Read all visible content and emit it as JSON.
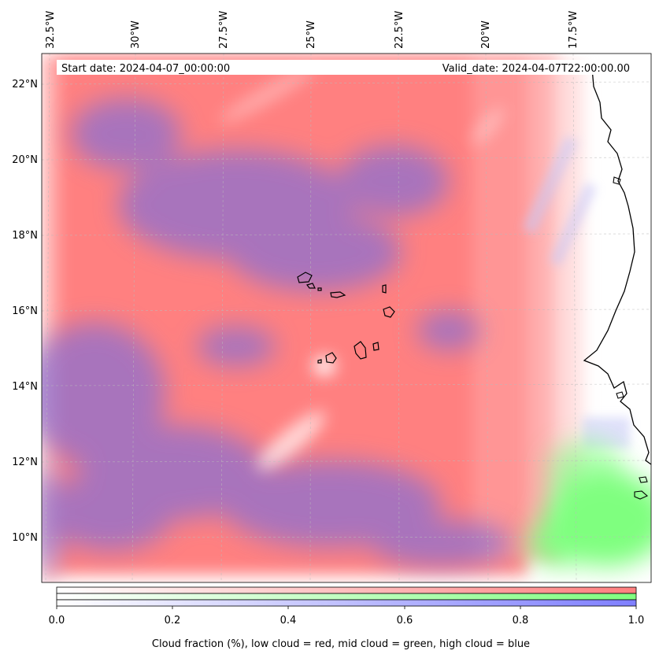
{
  "header": {
    "start_date": "Start date: 2024-04-07_00:00:00",
    "valid_date": "Valid_date: 2024-04-07T22:00:00.00"
  },
  "lon_labels": [
    "32.5°W",
    "30°W",
    "27.5°W",
    "25°W",
    "22.5°W",
    "20°W",
    "17.5°W"
  ],
  "lat_labels": [
    "22°N",
    "20°N",
    "18°N",
    "16°N",
    "14°N",
    "12°N",
    "10°N"
  ],
  "colorbar": {
    "ticks": [
      "0.0",
      "0.2",
      "0.4",
      "0.6",
      "0.8",
      "1.0"
    ],
    "label": "Cloud fraction (%), low cloud = red, mid cloud = green, high cloud = blue",
    "colors": {
      "low": "#ff8080",
      "mid": "#80ff80",
      "high": "#8080ff"
    }
  }
}
